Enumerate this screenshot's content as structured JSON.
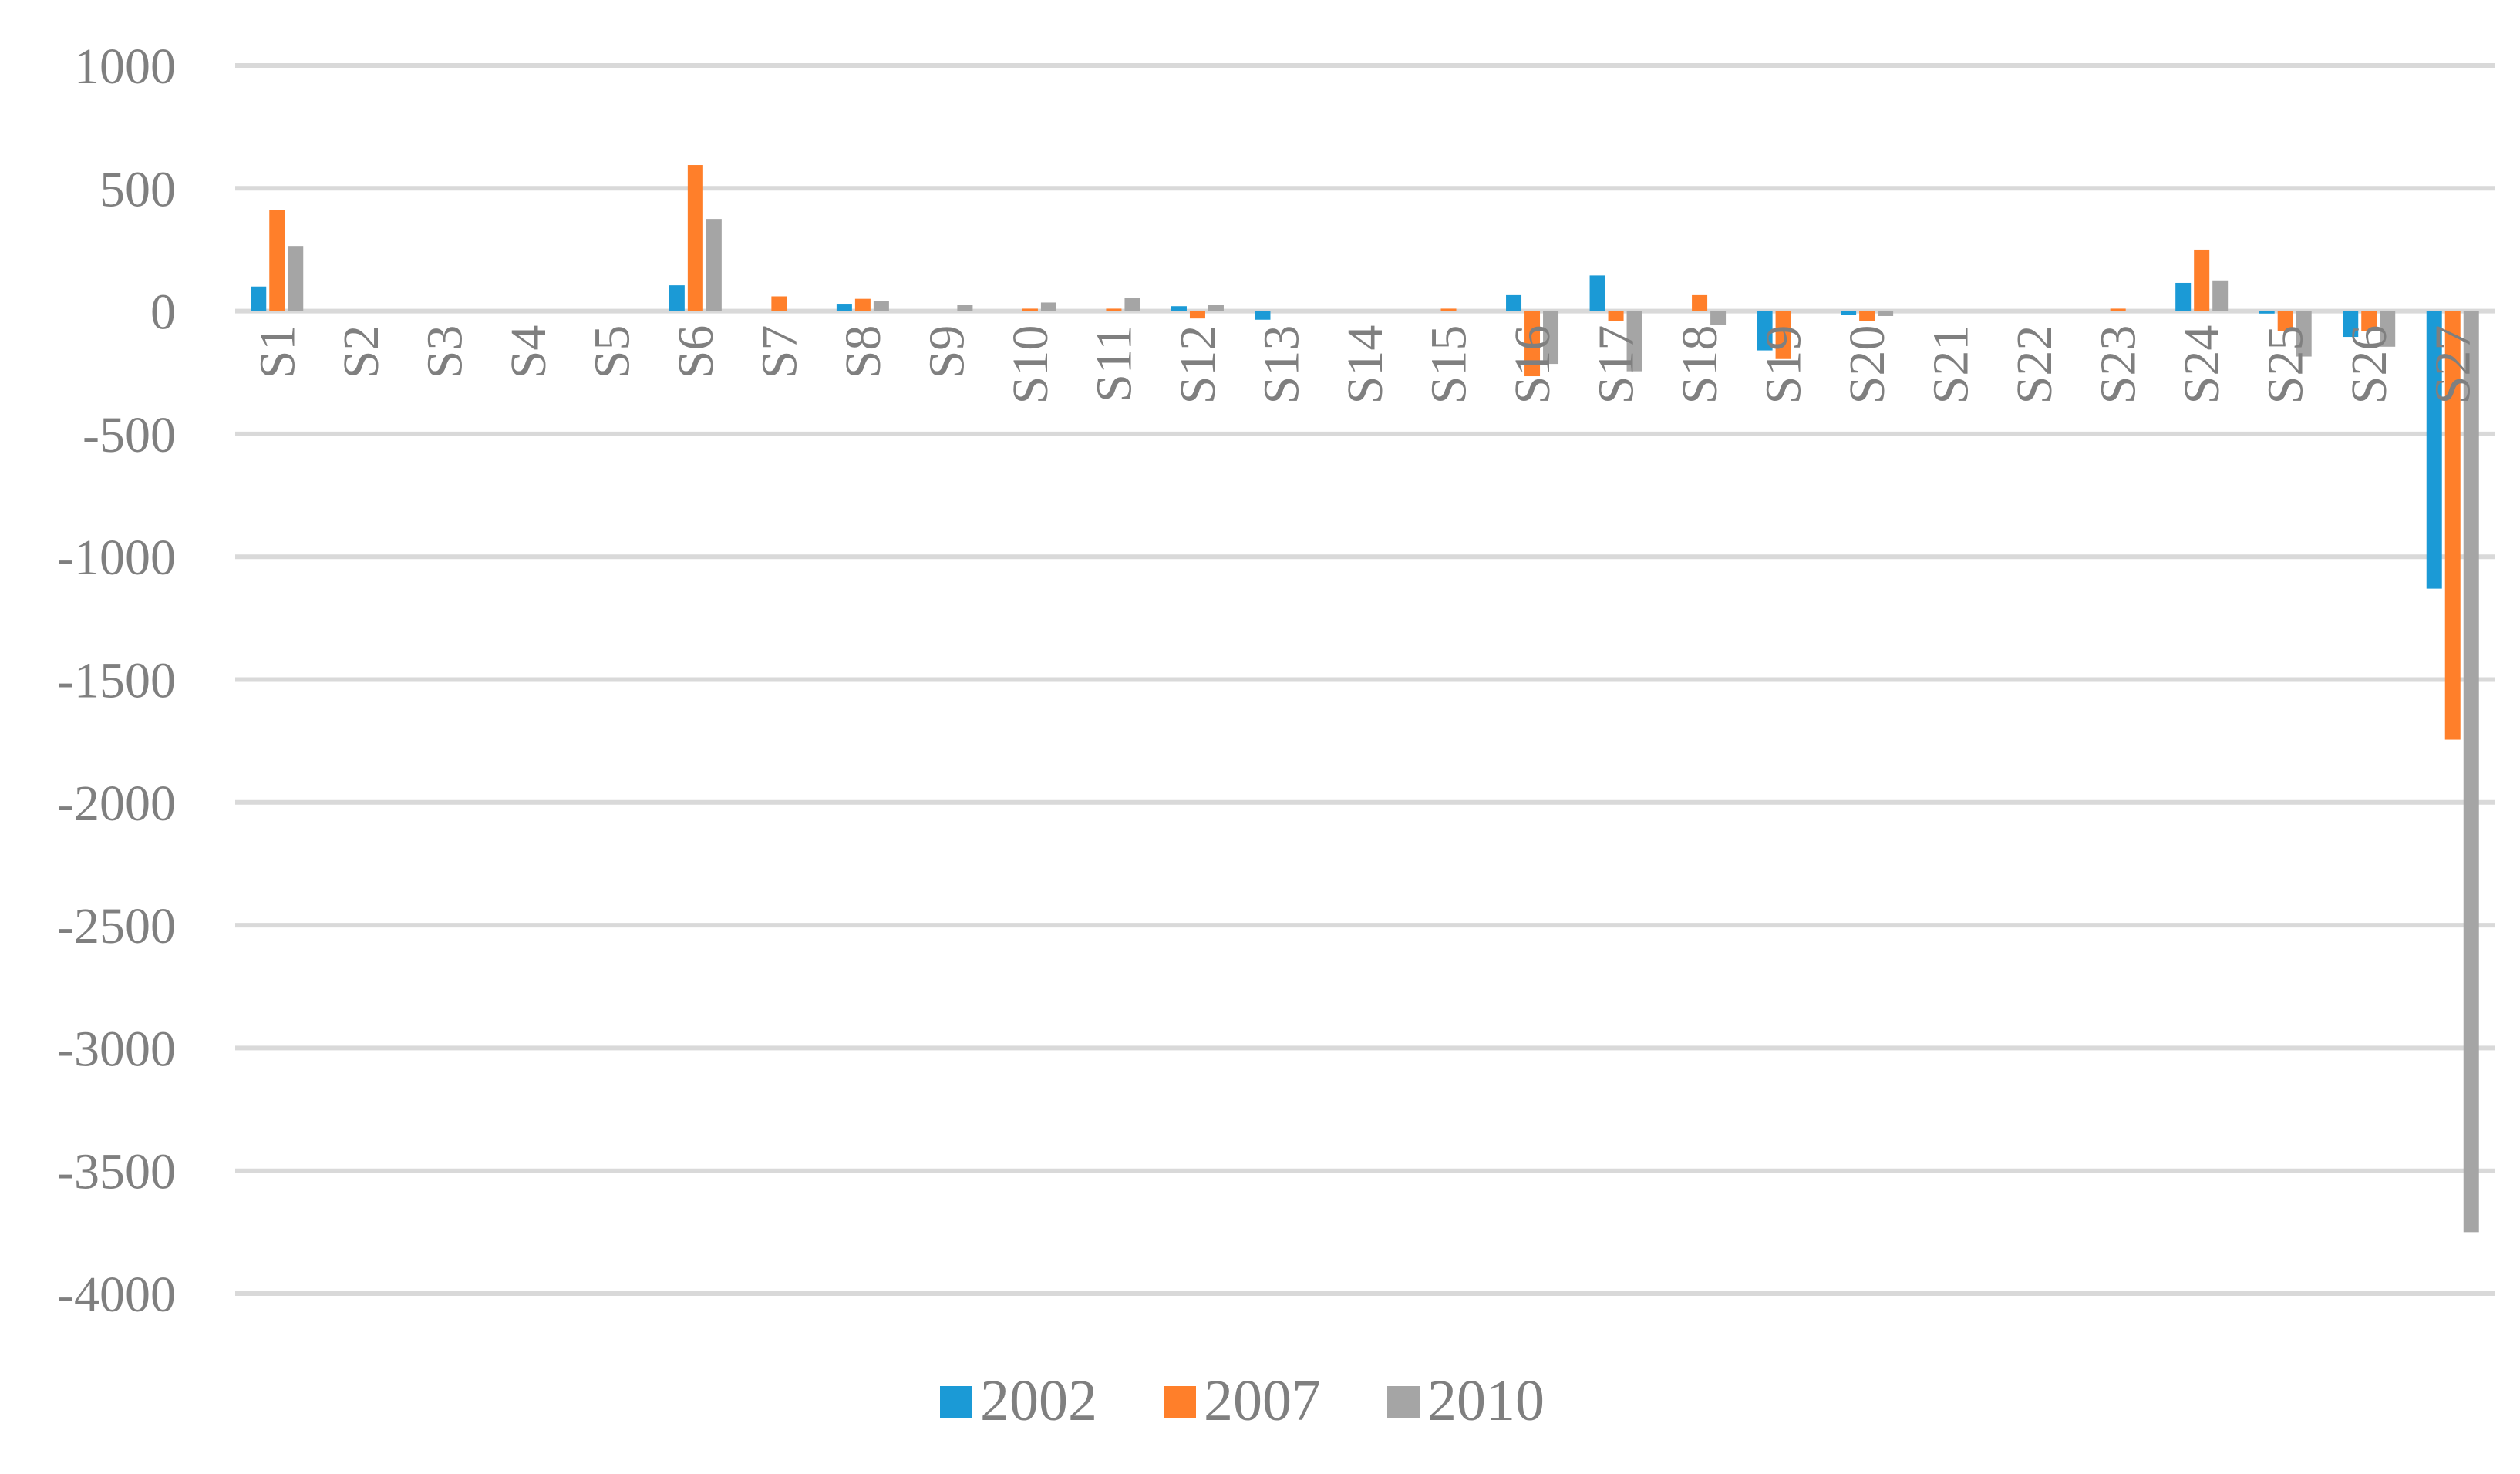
{
  "chart_data": {
    "type": "bar",
    "title": "",
    "xlabel": "",
    "ylabel": "",
    "ylim": [
      -4000,
      1000
    ],
    "yticks": [
      1000,
      500,
      0,
      -500,
      -1000,
      -1500,
      -2000,
      -2500,
      -3000,
      -3500,
      -4000
    ],
    "grid": true,
    "legend_position": "bottom",
    "categories": [
      "S1",
      "S2",
      "S3",
      "S4",
      "S5",
      "S6",
      "S7",
      "S8",
      "S9",
      "S10",
      "S11",
      "S12",
      "S13",
      "S14",
      "S15",
      "S16",
      "S17",
      "S18",
      "S19",
      "S20",
      "S21",
      "S22",
      "S23",
      "S24",
      "S25",
      "S26",
      "S27"
    ],
    "series": [
      {
        "name": "2002",
        "color": "#1b9ad6",
        "values": [
          100,
          0,
          0,
          0,
          0,
          105,
          0,
          30,
          0,
          0,
          0,
          20,
          -35,
          0,
          0,
          65,
          145,
          0,
          -160,
          -15,
          0,
          0,
          0,
          115,
          -10,
          -105,
          -1130
        ]
      },
      {
        "name": "2007",
        "color": "#ff7f2a",
        "values": [
          410,
          0,
          0,
          0,
          0,
          595,
          60,
          50,
          0,
          10,
          10,
          -30,
          0,
          0,
          10,
          -265,
          -40,
          65,
          -195,
          -40,
          0,
          0,
          10,
          250,
          -80,
          -80,
          -1745
        ]
      },
      {
        "name": "2010",
        "color": "#a5a5a5",
        "values": [
          265,
          0,
          0,
          0,
          0,
          375,
          0,
          40,
          25,
          35,
          55,
          25,
          0,
          0,
          0,
          -215,
          -245,
          -55,
          0,
          -20,
          0,
          0,
          0,
          125,
          -185,
          -145,
          -3750
        ]
      }
    ]
  }
}
